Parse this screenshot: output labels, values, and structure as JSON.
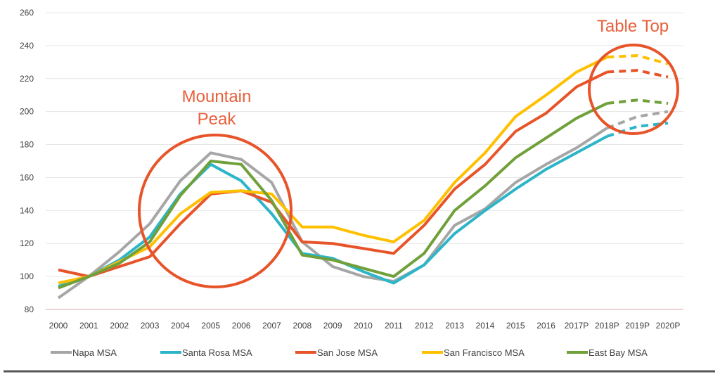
{
  "chart_data": {
    "type": "line",
    "title": "",
    "xlabel": "",
    "ylabel": "",
    "ylim": [
      80,
      260
    ],
    "yticks": [
      80,
      100,
      120,
      140,
      160,
      180,
      200,
      220,
      240,
      260
    ],
    "grid": true,
    "legend_position": "bottom",
    "categories": [
      "2000",
      "2001",
      "2002",
      "2003",
      "2004",
      "2005",
      "2006",
      "2007",
      "2008",
      "2009",
      "2010",
      "2011",
      "2012",
      "2013",
      "2014",
      "2015",
      "2016",
      "2017P",
      "2018P",
      "2019P",
      "2020P"
    ],
    "projection_from": "2018P",
    "series": [
      {
        "name": "Napa MSA",
        "color": "#a6a6a6",
        "values": [
          87,
          100,
          115,
          132,
          158,
          175,
          171,
          157,
          121,
          106,
          100,
          97,
          107,
          131,
          141,
          157,
          168,
          178,
          190,
          197,
          200
        ]
      },
      {
        "name": "Santa Rosa MSA",
        "color": "#2cb5c8",
        "values": [
          94,
          100,
          110,
          124,
          150,
          168,
          158,
          138,
          114,
          111,
          103,
          96,
          107,
          126,
          140,
          153,
          165,
          175,
          185,
          191,
          193
        ]
      },
      {
        "name": "San Jose MSA",
        "color": "#e8542a",
        "values": [
          104,
          100,
          106,
          112,
          132,
          150,
          152,
          145,
          121,
          120,
          117,
          114,
          131,
          153,
          168,
          188,
          199,
          215,
          224,
          225,
          221
        ]
      },
      {
        "name": "San Francisco MSA",
        "color": "#ffc000",
        "values": [
          96,
          100,
          109,
          118,
          138,
          151,
          152,
          150,
          130,
          130,
          125,
          121,
          134,
          157,
          175,
          197,
          210,
          224,
          233,
          234,
          229
        ]
      },
      {
        "name": "East Bay MSA",
        "color": "#70a03a",
        "values": [
          93,
          100,
          108,
          121,
          149,
          170,
          168,
          146,
          113,
          110,
          105,
          100,
          114,
          140,
          155,
          172,
          184,
          196,
          205,
          207,
          205
        ]
      }
    ],
    "annotations": [
      {
        "lines": [
          "Mountain",
          "Peak"
        ],
        "around": [
          "2004",
          "2007"
        ],
        "color": "#e8603c"
      },
      {
        "lines": [
          "Table Top"
        ],
        "around": [
          "2018P",
          "2020P"
        ],
        "color": "#e8603c"
      }
    ]
  }
}
